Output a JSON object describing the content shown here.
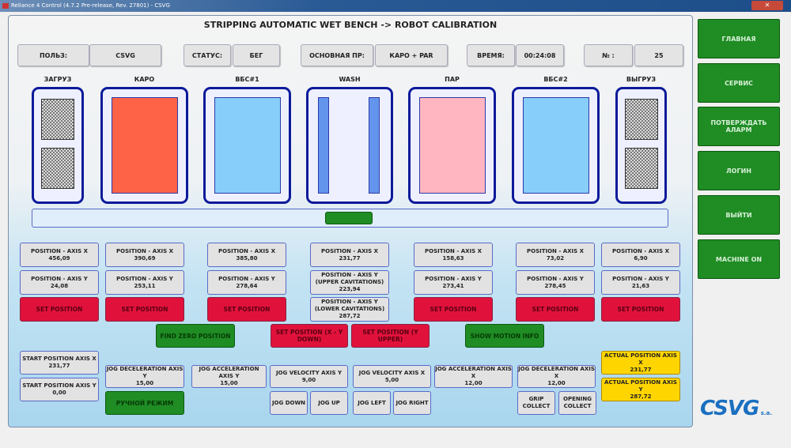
{
  "window": {
    "title": "Reliance 4 Control (4.7.2 Pre-release, Rev. 27801) - CSVG"
  },
  "title": "STRIPPING AUTOMATIC WET BENCH -> ROBOT CALIBRATION",
  "header": [
    {
      "label": "ПОЛЬЗ:",
      "value": "CSVG"
    },
    {
      "label": "СТАТУС:",
      "value": "БЕГ"
    },
    {
      "label": "ОСНОВНАЯ ПР:",
      "value": "КАРО + PAR"
    },
    {
      "label": "ВРЕМЯ:",
      "value": "00:24:08"
    },
    {
      "label": "№ :",
      "value": "25"
    }
  ],
  "tanks": [
    "ЗАГРУЗ",
    "КАРО",
    "ВБС#1",
    "WASH",
    "ПАР",
    "ВБС#2",
    "ВЫГРУЗ"
  ],
  "colors": {
    "karo": "#ff6347",
    "vbs": "#87cefa",
    "wash": "#6495ed",
    "par": "#ffb6c1",
    "green": "#1f8c24",
    "red": "#e0123c",
    "yellow": "#ffd500"
  },
  "positions": [
    {
      "x_label": "POSITION - AXIS X",
      "x": "456,09",
      "y_label": "POSITION - AXIS Y",
      "y": "24,08",
      "set": "SET POSITION"
    },
    {
      "x_label": "POSITION - AXIS X",
      "x": "390,69",
      "y_label": "POSITION - AXIS Y",
      "y": "253,11",
      "set": "SET POSITION"
    },
    {
      "x_label": "POSITION - AXIS X",
      "x": "385,80",
      "y_label": "POSITION - AXIS Y",
      "y": "278,64",
      "set": "SET POSITION"
    },
    {
      "x_label": "POSITION - AXIS X",
      "x": "231,77",
      "y_label": "POSITION - AXIS Y (UPPER CAVITATIONS)",
      "y": "223,94",
      "y2_label": "POSITION - AXIS Y (LOWER CAVITATIONS)",
      "y2": "287,72"
    },
    {
      "x_label": "POSITION - AXIS X",
      "x": "158,63",
      "y_label": "POSITION - AXIS Y",
      "y": "273,41",
      "set": "SET POSITION"
    },
    {
      "x_label": "POSITION - AXIS X",
      "x": "73,02",
      "y_label": "POSITION - AXIS Y",
      "y": "278,45",
      "set": "SET POSITION"
    },
    {
      "x_label": "POSITION - AXIS X",
      "x": "6,90",
      "y_label": "POSITION - AXIS Y",
      "y": "21,63",
      "set": "SET POSITION"
    }
  ],
  "buttons": {
    "find_zero": "FIND ZERO POSITION",
    "set_xy_down": "SET POSITION (X - Y DOWN)",
    "set_y_upper": "SET POSITION (Y UPPER)",
    "show_motion": "SHOW MOTION INFO",
    "manual": "РУЧНОЙ РЕЖИМ",
    "jog_down": "JOG DOWN",
    "jog_up": "JOG UP",
    "jog_left": "JOG LEFT",
    "jog_right": "JOG RIGHT",
    "grip": "GRIP COLLECT",
    "opening": "OPENING COLLECT"
  },
  "start": [
    {
      "label": "START POSITION AXIS X",
      "value": "231,77"
    },
    {
      "label": "START POSITION AXIS Y",
      "value": "0,00"
    }
  ],
  "jog": [
    {
      "label": "JOG DECELERATION AXIS Y",
      "value": "15,00"
    },
    {
      "label": "JOG ACCELERATION AXIS Y",
      "value": "15,00"
    },
    {
      "label": "JOG VELOCITY AXIS Y",
      "value": "9,00"
    },
    {
      "label": "JOG VELOCITY AXIS X",
      "value": "5,00"
    },
    {
      "label": "JOG ACCELERATION AXIS X",
      "value": "12,00"
    },
    {
      "label": "JOG DECELERATION AXIS X",
      "value": "12,00"
    }
  ],
  "actual": [
    {
      "label": "ACTUAL POSITION AXIS X",
      "value": "231,77"
    },
    {
      "label": "ACTUAL POSITION AXIS Y",
      "value": "287,72"
    }
  ],
  "sidebar": [
    "ГЛАВНАЯ",
    "СЕРВИС",
    "ПОТВЕРЖДАТЬ АЛАРМ",
    "ЛОГИН",
    "ВЫЙТИ",
    "MACHINE ON"
  ],
  "logo": "CSVG s.a."
}
